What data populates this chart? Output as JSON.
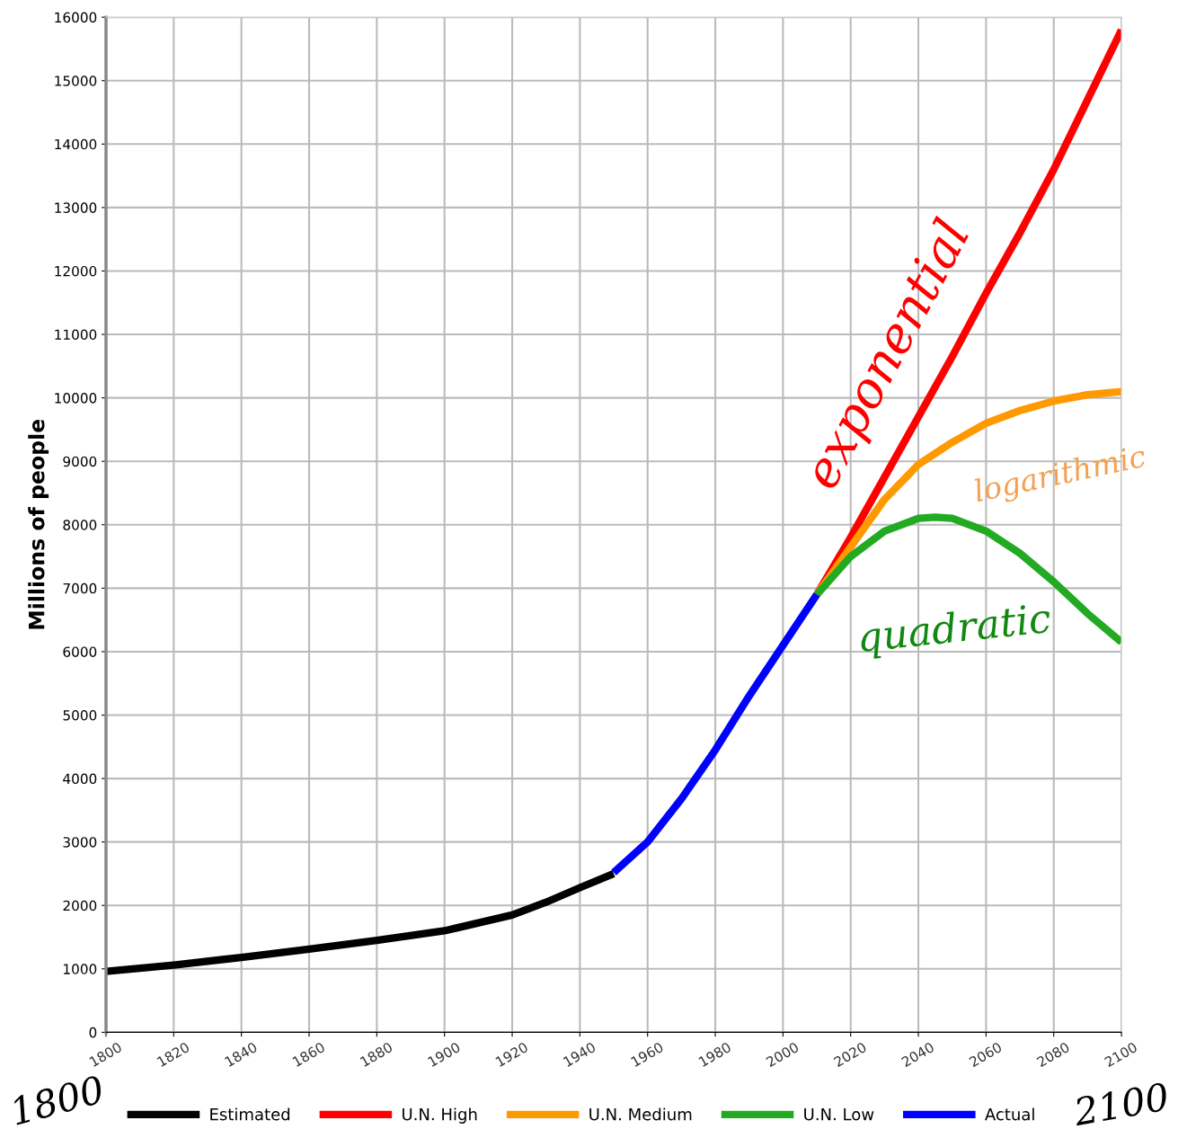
{
  "chart_data": {
    "type": "line",
    "ylabel": "Millions of people",
    "xlim": [
      1800,
      2100
    ],
    "xticks": [
      1800,
      1820,
      1840,
      1860,
      1880,
      1900,
      1920,
      1940,
      1960,
      1980,
      2000,
      2020,
      2040,
      2060,
      2080,
      2100
    ],
    "ylim": [
      0,
      16000
    ],
    "yticks": [
      0,
      1000,
      2000,
      3000,
      4000,
      5000,
      6000,
      7000,
      8000,
      9000,
      10000,
      11000,
      12000,
      13000,
      14000,
      15000,
      16000
    ],
    "grid": true,
    "legend": "bottom",
    "line_style": "solid",
    "series": [
      {
        "name": "Estimated",
        "color": "#000000",
        "x": [
          1800,
          1820,
          1840,
          1860,
          1880,
          1900,
          1920,
          1930,
          1940,
          1950
        ],
        "values": [
          960,
          1060,
          1180,
          1310,
          1450,
          1600,
          1850,
          2050,
          2280,
          2500
        ]
      },
      {
        "name": "U.N. High",
        "color": "#ff0000",
        "x": [
          2010,
          2020,
          2030,
          2040,
          2050,
          2060,
          2070,
          2080,
          2090,
          2100
        ],
        "values": [
          6900,
          7800,
          8750,
          9700,
          10650,
          11650,
          12600,
          13600,
          14700,
          15800
        ]
      },
      {
        "name": "U.N. Medium",
        "color": "#ff9900",
        "x": [
          2010,
          2020,
          2030,
          2040,
          2050,
          2060,
          2070,
          2080,
          2090,
          2100
        ],
        "values": [
          6900,
          7650,
          8400,
          8950,
          9300,
          9600,
          9800,
          9950,
          10050,
          10100
        ]
      },
      {
        "name": "U.N. Low",
        "color": "#22aa22",
        "x": [
          2010,
          2020,
          2030,
          2040,
          2045,
          2050,
          2060,
          2070,
          2080,
          2090,
          2100
        ],
        "values": [
          6900,
          7500,
          7900,
          8100,
          8120,
          8100,
          7900,
          7550,
          7100,
          6600,
          6150
        ]
      },
      {
        "name": "Actual",
        "color": "#0000ff",
        "x": [
          1950,
          1960,
          1970,
          1980,
          1990,
          2000,
          2010
        ],
        "values": [
          2520,
          3000,
          3680,
          4450,
          5300,
          6100,
          6900
        ]
      }
    ],
    "annotations": [
      "exponential",
      "logarithmic",
      "quadratic",
      "1800",
      "2100"
    ]
  }
}
